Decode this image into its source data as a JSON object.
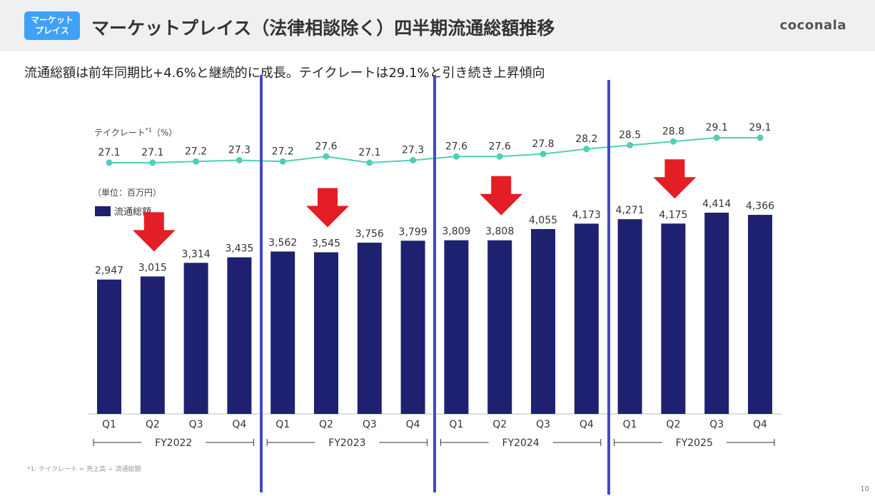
{
  "header": {
    "badge_line1": "マーケット",
    "badge_line2": "プレイス",
    "title": "マーケットプレイス（法律相談除く）四半期流通総額推移",
    "logo": "coconala"
  },
  "subtitle": "流通総額は前年同期比+4.6%と継続的に成長。テイクレートは29.1%と引き続き上昇傾向",
  "footnote": "*1: テイクレート = 売上高 ÷ 流通総額",
  "page_number": "10",
  "chart_data": {
    "type": "bar+line",
    "categories": [
      "Q1",
      "Q2",
      "Q3",
      "Q4",
      "Q1",
      "Q2",
      "Q3",
      "Q4",
      "Q1",
      "Q2",
      "Q3",
      "Q4",
      "Q1",
      "Q2",
      "Q3",
      "Q4"
    ],
    "groups": [
      {
        "label": "FY2022"
      },
      {
        "label": "FY2023"
      },
      {
        "label": "FY2024"
      },
      {
        "label": "FY2025"
      }
    ],
    "unit_label": "（単位：百万円）",
    "bar_series": {
      "name": "流通総額",
      "color": "#1e2170",
      "values": [
        2947,
        3015,
        3314,
        3435,
        3562,
        3545,
        3756,
        3799,
        3809,
        3808,
        4055,
        4173,
        4271,
        4175,
        4414,
        4366
      ],
      "labels": [
        "2,947",
        "3,015",
        "3,314",
        "3,435",
        "3,562",
        "3,545",
        "3,756",
        "3,799",
        "3,809",
        "3,808",
        "4,055",
        "4,173",
        "4,271",
        "4,175",
        "4,414",
        "4,366"
      ]
    },
    "line_series": {
      "name": "テイクレート",
      "name_sup": "*1",
      "unit": "（%）",
      "color": "#4fcfb8",
      "values": [
        27.1,
        27.1,
        27.2,
        27.3,
        27.2,
        27.6,
        27.1,
        27.3,
        27.6,
        27.6,
        27.8,
        28.2,
        28.5,
        28.8,
        29.1,
        29.1
      ]
    },
    "annotations": {
      "red_arrows_at_categories": [
        1,
        5,
        9,
        13
      ],
      "arrow_color": "#e31e24",
      "vertical_lines_color": "#4349c9"
    }
  }
}
